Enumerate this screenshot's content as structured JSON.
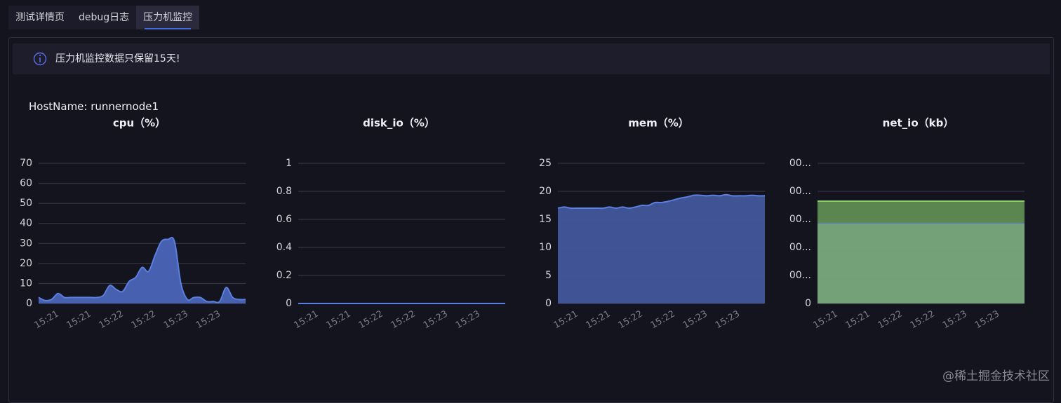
{
  "tabs": [
    "测试详情页",
    "debug日志",
    "压力机监控"
  ],
  "active_tab": 2,
  "alert": "压力机监控数据只保留15天!",
  "host_name": "HostName: runnernode1",
  "watermark": "@稀土掘金技术社区",
  "chart_data": [
    {
      "type": "area",
      "title": "cpu（%）",
      "categories": [
        null,
        null,
        null,
        "15:21",
        null,
        null,
        null,
        null,
        "15:21",
        null,
        null,
        null,
        null,
        "15:22",
        null,
        null,
        null,
        null,
        "15:22",
        null,
        null,
        null,
        null,
        "15:23",
        null,
        null,
        null,
        null,
        "15:23",
        null,
        null,
        null,
        null
      ],
      "series": [
        {
          "color": "#4a64b8",
          "line_color": "#5b7fe0",
          "values": [
            3,
            1.5,
            2,
            5,
            3,
            3,
            3,
            3,
            3,
            3,
            4,
            9,
            7,
            6,
            11,
            13,
            18,
            16,
            24,
            31,
            32,
            31,
            10,
            2,
            3,
            3,
            1,
            1,
            1,
            8,
            3,
            2,
            2
          ]
        }
      ],
      "ylim": [
        0,
        70
      ],
      "yticks": [
        0,
        10,
        20,
        30,
        40,
        50,
        60,
        70
      ],
      "grid": true
    },
    {
      "type": "area",
      "title": "disk_io（%）",
      "categories": [
        null,
        null,
        null,
        "15:21",
        null,
        null,
        null,
        null,
        "15:21",
        null,
        null,
        null,
        null,
        "15:22",
        null,
        null,
        null,
        null,
        "15:22",
        null,
        null,
        null,
        null,
        "15:23",
        null,
        null,
        null,
        null,
        "15:23",
        null,
        null,
        null,
        null
      ],
      "series": [
        {
          "color": "#4a64b8",
          "line_color": "#5b7fe0",
          "values": [
            0,
            0,
            0,
            0,
            0,
            0,
            0,
            0,
            0,
            0,
            0,
            0,
            0,
            0,
            0,
            0,
            0,
            0,
            0,
            0,
            0,
            0,
            0,
            0,
            0,
            0,
            0,
            0,
            0,
            0,
            0,
            0,
            0
          ]
        }
      ],
      "ylim": [
        0,
        1
      ],
      "yticks": [
        0,
        0.2,
        0.4,
        0.6,
        0.8,
        1
      ],
      "grid": true
    },
    {
      "type": "area",
      "title": "mem（%）",
      "categories": [
        null,
        null,
        null,
        "15:21",
        null,
        null,
        null,
        null,
        "15:21",
        null,
        null,
        null,
        null,
        "15:22",
        null,
        null,
        null,
        null,
        "15:22",
        null,
        null,
        null,
        null,
        "15:23",
        null,
        null,
        null,
        null,
        "15:23",
        null,
        null,
        null,
        null
      ],
      "series": [
        {
          "color": "#42569c",
          "line_color": "#5b7fe0",
          "values": [
            17,
            17.2,
            17,
            17,
            17,
            17,
            17,
            17,
            17.2,
            17,
            17.2,
            17,
            17.2,
            17.5,
            17.5,
            18,
            18,
            18.2,
            18.5,
            18.8,
            19,
            19.3,
            19.3,
            19.2,
            19.3,
            19.2,
            19.4,
            19.2,
            19.2,
            19.2,
            19.3,
            19.2,
            19.2
          ]
        }
      ],
      "ylim": [
        0,
        25
      ],
      "yticks": [
        0,
        5,
        10,
        15,
        20,
        25
      ],
      "grid": true
    },
    {
      "type": "area",
      "title": "net_io（kb）",
      "stacked": true,
      "categories": [
        null,
        null,
        null,
        "15:21",
        null,
        null,
        null,
        null,
        "15:21",
        null,
        null,
        null,
        null,
        "15:22",
        null,
        null,
        null,
        null,
        "15:22",
        null,
        null,
        null,
        null,
        "15:23",
        null,
        null,
        null,
        null,
        "15:23",
        null,
        null,
        null,
        null
      ],
      "series": [
        {
          "color": "#79a97c",
          "line_color": "#4f78c8",
          "values": [
            575,
            575,
            575,
            575,
            575,
            575,
            575,
            575,
            575,
            575,
            575,
            575,
            575,
            575,
            575,
            575,
            575,
            575,
            575,
            575,
            575,
            575,
            575,
            575,
            575,
            575,
            575,
            575,
            575,
            575,
            575,
            575,
            575
          ]
        },
        {
          "color": "#5f8c52",
          "line_color": "#8fcf6e",
          "values": [
            155,
            155,
            155,
            155,
            155,
            155,
            155,
            155,
            155,
            155,
            155,
            155,
            155,
            155,
            155,
            155,
            155,
            155,
            155,
            155,
            155,
            155,
            155,
            155,
            155,
            155,
            155,
            155,
            155,
            155,
            155,
            155,
            155
          ]
        }
      ],
      "ylim": [
        0,
        1000
      ],
      "yticks": [
        0,
        {
          "value": 200,
          "label": "00..."
        },
        {
          "value": 400,
          "label": "00..."
        },
        {
          "value": 600,
          "label": "00..."
        },
        {
          "value": 800,
          "label": "00..."
        },
        {
          "value": 1000,
          "label": "00..."
        }
      ],
      "grid": true
    }
  ]
}
